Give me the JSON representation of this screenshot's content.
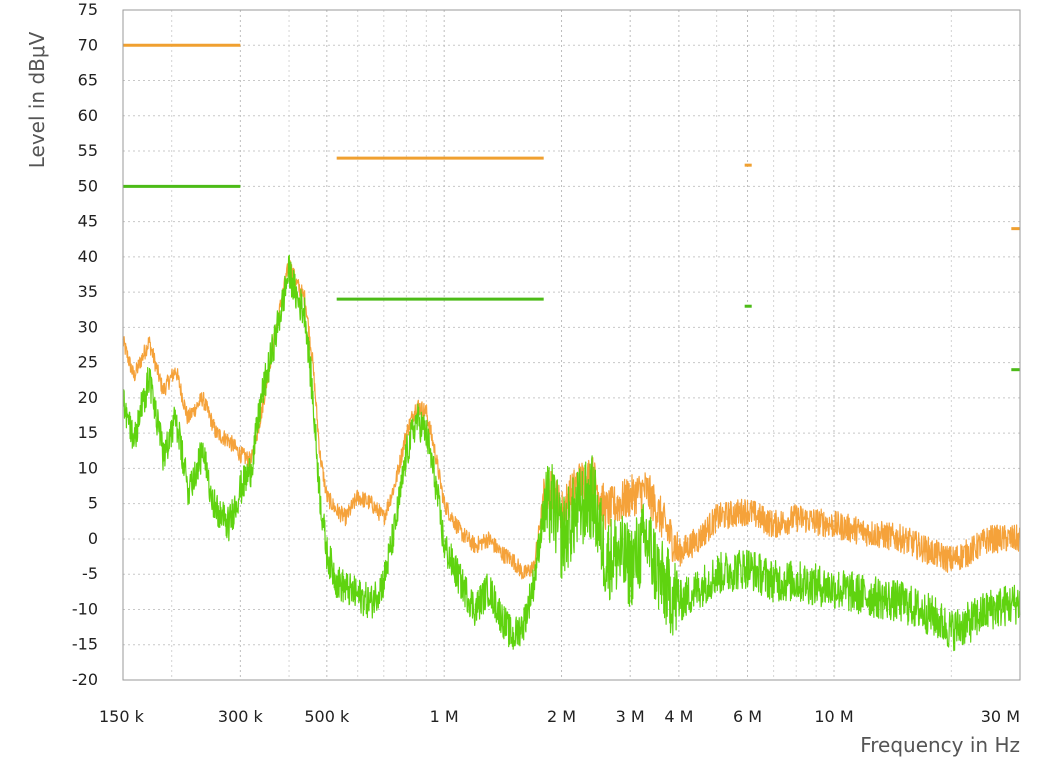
{
  "chart_data": {
    "type": "line",
    "title": "",
    "xlabel": "Frequency in Hz",
    "ylabel": "Level in  dBμV",
    "x_scale": "log",
    "xlim": [
      150000,
      30000000
    ],
    "ylim": [
      -20,
      75
    ],
    "grid": true,
    "legend": "none",
    "y_ticks": [
      75,
      70,
      65,
      60,
      55,
      50,
      45,
      40,
      35,
      30,
      25,
      20,
      15,
      10,
      5,
      0,
      -5,
      -10,
      -15,
      -20
    ],
    "x_ticks": [
      {
        "value": 150000,
        "label": "150 k"
      },
      {
        "value": 300000,
        "label": "300 k"
      },
      {
        "value": 500000,
        "label": "500 k"
      },
      {
        "value": 1000000,
        "label": "1 M"
      },
      {
        "value": 2000000,
        "label": "2 M"
      },
      {
        "value": 3000000,
        "label": "3 M"
      },
      {
        "value": 4000000,
        "label": "4 M"
      },
      {
        "value": 6000000,
        "label": "6 M"
      },
      {
        "value": 10000000,
        "label": "10 M"
      },
      {
        "value": 30000000,
        "label": "30 M"
      }
    ],
    "x_minor_grid": [
      200000,
      400000,
      600000,
      700000,
      800000,
      900000,
      5000000,
      7000000,
      8000000,
      9000000,
      20000000
    ],
    "colors": {
      "orange": "#f5a23a",
      "green": "#5fd30f",
      "orange_limit": "#f0a030",
      "green_limit": "#4cbb17"
    },
    "limit_lines": [
      {
        "color": "orange",
        "segments": [
          {
            "x": [
              150000,
              300000
            ],
            "y": 70
          },
          {
            "x": [
              530000,
              1800000
            ],
            "y": 54
          },
          {
            "x": [
              5900000,
              6150000
            ],
            "y": 53
          },
          {
            "x": [
              28500000,
              30000000
            ],
            "y": 44
          }
        ]
      },
      {
        "color": "green",
        "segments": [
          {
            "x": [
              150000,
              300000
            ],
            "y": 50
          },
          {
            "x": [
              530000,
              1800000
            ],
            "y": 34
          },
          {
            "x": [
              5900000,
              6150000
            ],
            "y": 33
          },
          {
            "x": [
              28500000,
              30000000
            ],
            "y": 24
          }
        ]
      }
    ],
    "series": [
      {
        "color": "orange",
        "points": [
          [
            150000,
            28
          ],
          [
            160000,
            23
          ],
          [
            175000,
            28
          ],
          [
            190000,
            21
          ],
          [
            205000,
            24
          ],
          [
            220000,
            17
          ],
          [
            240000,
            20
          ],
          [
            260000,
            15
          ],
          [
            280000,
            14
          ],
          [
            300000,
            12
          ],
          [
            320000,
            11
          ],
          [
            340000,
            18
          ],
          [
            360000,
            26
          ],
          [
            380000,
            33
          ],
          [
            400000,
            39
          ],
          [
            420000,
            36
          ],
          [
            440000,
            34
          ],
          [
            460000,
            25
          ],
          [
            480000,
            12
          ],
          [
            500000,
            6
          ],
          [
            530000,
            4
          ],
          [
            560000,
            3
          ],
          [
            600000,
            6
          ],
          [
            650000,
            5
          ],
          [
            700000,
            3
          ],
          [
            750000,
            8
          ],
          [
            800000,
            15
          ],
          [
            850000,
            19
          ],
          [
            900000,
            18
          ],
          [
            950000,
            12
          ],
          [
            1000000,
            5
          ],
          [
            1100000,
            1
          ],
          [
            1200000,
            -1
          ],
          [
            1300000,
            0
          ],
          [
            1400000,
            -2
          ],
          [
            1500000,
            -3
          ],
          [
            1600000,
            -5
          ],
          [
            1700000,
            -4
          ],
          [
            1800000,
            6
          ],
          [
            1900000,
            7
          ],
          [
            2000000,
            4
          ],
          [
            2200000,
            8
          ],
          [
            2400000,
            9
          ],
          [
            2600000,
            4
          ],
          [
            2800000,
            5
          ],
          [
            3000000,
            6
          ],
          [
            3300000,
            7
          ],
          [
            3600000,
            3
          ],
          [
            4000000,
            -2
          ],
          [
            4500000,
            0
          ],
          [
            5000000,
            3
          ],
          [
            6000000,
            4
          ],
          [
            7000000,
            2
          ],
          [
            8000000,
            3
          ],
          [
            10000000,
            2
          ],
          [
            12000000,
            1
          ],
          [
            15000000,
            0
          ],
          [
            18000000,
            -2
          ],
          [
            20000000,
            -3
          ],
          [
            22000000,
            -2
          ],
          [
            25000000,
            0
          ],
          [
            30000000,
            0
          ]
        ]
      },
      {
        "color": "green",
        "points": [
          [
            150000,
            20
          ],
          [
            160000,
            14
          ],
          [
            175000,
            23
          ],
          [
            190000,
            12
          ],
          [
            205000,
            17
          ],
          [
            220000,
            7
          ],
          [
            240000,
            12
          ],
          [
            260000,
            4
          ],
          [
            280000,
            2
          ],
          [
            300000,
            7
          ],
          [
            320000,
            10
          ],
          [
            340000,
            20
          ],
          [
            360000,
            26
          ],
          [
            380000,
            32
          ],
          [
            400000,
            38
          ],
          [
            420000,
            34
          ],
          [
            440000,
            32
          ],
          [
            460000,
            20
          ],
          [
            480000,
            6
          ],
          [
            500000,
            -2
          ],
          [
            530000,
            -6
          ],
          [
            560000,
            -7
          ],
          [
            600000,
            -8
          ],
          [
            650000,
            -9
          ],
          [
            700000,
            -6
          ],
          [
            750000,
            2
          ],
          [
            800000,
            12
          ],
          [
            850000,
            17
          ],
          [
            900000,
            15
          ],
          [
            950000,
            8
          ],
          [
            1000000,
            -1
          ],
          [
            1100000,
            -6
          ],
          [
            1200000,
            -10
          ],
          [
            1300000,
            -7
          ],
          [
            1400000,
            -11
          ],
          [
            1500000,
            -14
          ],
          [
            1600000,
            -12
          ],
          [
            1700000,
            -6
          ],
          [
            1800000,
            4
          ],
          [
            1900000,
            5
          ],
          [
            2000000,
            0
          ],
          [
            2200000,
            4
          ],
          [
            2400000,
            6
          ],
          [
            2600000,
            -3
          ],
          [
            2800000,
            -2
          ],
          [
            3000000,
            -4
          ],
          [
            3300000,
            0
          ],
          [
            3600000,
            -6
          ],
          [
            4000000,
            -9
          ],
          [
            4500000,
            -7
          ],
          [
            5000000,
            -5
          ],
          [
            6000000,
            -4
          ],
          [
            7000000,
            -6
          ],
          [
            8000000,
            -6
          ],
          [
            10000000,
            -7
          ],
          [
            12000000,
            -8
          ],
          [
            15000000,
            -9
          ],
          [
            18000000,
            -11
          ],
          [
            20000000,
            -13
          ],
          [
            22000000,
            -12
          ],
          [
            25000000,
            -10
          ],
          [
            30000000,
            -9
          ]
        ]
      }
    ]
  }
}
